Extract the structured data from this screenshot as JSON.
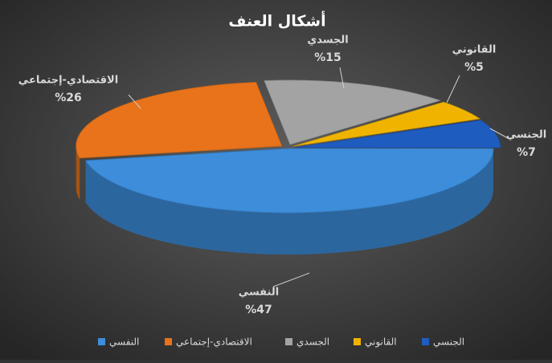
{
  "chart_data": {
    "type": "pie3d",
    "title": "أشكال العنف",
    "categories": [
      "النفسي",
      "الاقتصادي-إجتماعي",
      "الجسدي",
      "القانوني",
      "الجنسي"
    ],
    "values": [
      47,
      26,
      15,
      5,
      7
    ],
    "value_labels": [
      "%47",
      "%26",
      "%15",
      "%5",
      "%7"
    ],
    "colors": [
      "#3d8ddb",
      "#e8731a",
      "#a3a3a3",
      "#f0b400",
      "#1f5cbf"
    ]
  }
}
